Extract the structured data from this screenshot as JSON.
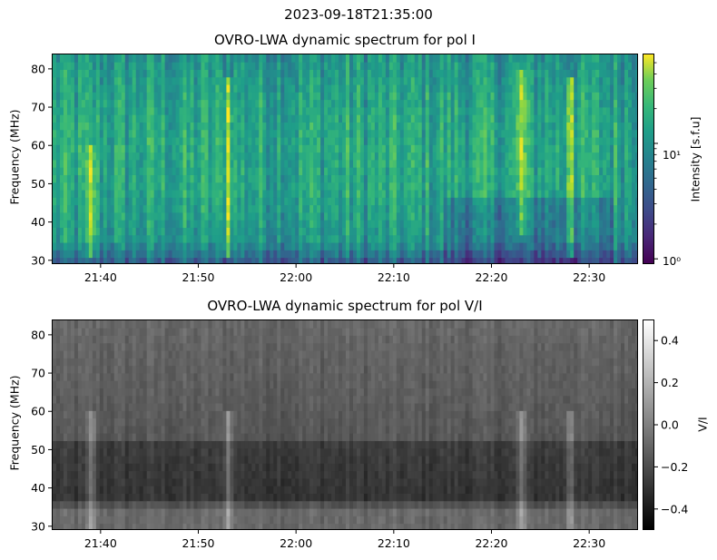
{
  "suptitle": "2023-09-18T21:35:00",
  "chart_data": [
    {
      "type": "heatmap",
      "title": "OVRO-LWA dynamic spectrum for pol I",
      "xlabel": "",
      "ylabel": "Frequency (MHz)",
      "xlim": [
        "21:35",
        "22:35"
      ],
      "ylim": [
        29,
        84
      ],
      "x_ticks": [
        "21:40",
        "21:50",
        "22:00",
        "22:10",
        "22:20",
        "22:30"
      ],
      "y_ticks": [
        30,
        40,
        50,
        60,
        70,
        80
      ],
      "colormap": "viridis",
      "colorbar": {
        "label": "Intensity [s.f.u]",
        "scale": "log",
        "range": [
          0.9,
          60
        ],
        "tick_labels": [
          "10⁰",
          "10¹"
        ],
        "tick_values": [
          1,
          10
        ]
      },
      "bursts": [
        {
          "time": "21:39",
          "freq_range": [
            30,
            60
          ],
          "level": "high"
        },
        {
          "time": "21:53",
          "freq_range": [
            30,
            78
          ],
          "level": "high"
        },
        {
          "time": "22:23",
          "freq_range": [
            35,
            80
          ],
          "level": "high"
        },
        {
          "time": "22:28",
          "freq_range": [
            30,
            77
          ],
          "level": "very high"
        }
      ]
    },
    {
      "type": "heatmap",
      "title": "OVRO-LWA dynamic spectrum for pol V/I",
      "xlabel": "",
      "ylabel": "Frequency (MHz)",
      "xlim": [
        "21:35",
        "22:35"
      ],
      "ylim": [
        29,
        84
      ],
      "x_ticks": [
        "21:40",
        "21:50",
        "22:00",
        "22:10",
        "22:20",
        "22:30"
      ],
      "y_ticks": [
        30,
        40,
        50,
        60,
        70,
        80
      ],
      "colormap": "gray",
      "colorbar": {
        "label": "V/I",
        "scale": "linear",
        "range": [
          -0.5,
          0.5
        ],
        "tick_labels": [
          "0.4",
          "0.2",
          "0.0",
          "−0.2",
          "−0.4"
        ],
        "tick_values": [
          0.4,
          0.2,
          0.0,
          -0.2,
          -0.4
        ]
      }
    }
  ]
}
